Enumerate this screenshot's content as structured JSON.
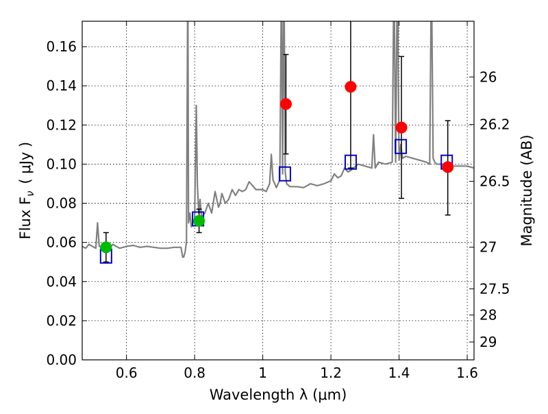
{
  "chart_data": {
    "type": "scatter",
    "xlabel": "Wavelength  λ (μm)",
    "ylabel": "Flux  F",
    "ylabel_sub": "ν",
    "ylabel_unit": "( μJy )",
    "y2label": "Magnitude (AB)",
    "xlim": [
      0.47,
      1.62
    ],
    "ylim": [
      0.0,
      0.173
    ],
    "grid": true,
    "xticks": [
      0.6,
      0.8,
      1.0,
      1.2,
      1.4,
      1.6
    ],
    "xtick_labels": [
      "0.6",
      "0.8",
      "1",
      "1.2",
      "1.4",
      "1.6"
    ],
    "yticks": [
      0.0,
      0.02,
      0.04,
      0.06,
      0.08,
      0.1,
      0.12,
      0.14,
      0.16
    ],
    "ytick_labels": [
      "0.00",
      "0.02",
      "0.04",
      "0.06",
      "0.08",
      "0.10",
      "0.12",
      "0.14",
      "0.16"
    ],
    "y2ticks": [
      {
        "mag": 26,
        "label": "26"
      },
      {
        "mag": 26.2,
        "label": "26.2"
      },
      {
        "mag": 26.5,
        "label": "26.5"
      },
      {
        "mag": 27,
        "label": "27"
      },
      {
        "mag": 27.5,
        "label": "27.5"
      },
      {
        "mag": 28,
        "label": "28"
      },
      {
        "mag": 29,
        "label": "29"
      }
    ],
    "series": [
      {
        "name": "model-photometry",
        "marker": "open-square",
        "color": "#0000cc",
        "x": [
          0.54,
          0.81,
          1.065,
          1.258,
          1.405,
          1.54
        ],
        "y": [
          0.053,
          0.072,
          0.095,
          0.101,
          0.109,
          0.101
        ]
      },
      {
        "name": "detections",
        "marker": "filled-circle",
        "color": "#00bb00",
        "x": [
          0.54,
          0.813
        ],
        "y": [
          0.0575,
          0.071
        ],
        "yerr": [
          0.0075,
          0.006
        ]
      },
      {
        "name": "upper-limits",
        "marker": "filled-circle",
        "color": "#ff0000",
        "x": [
          1.068,
          1.258,
          1.407,
          1.543
        ],
        "y": [
          0.1307,
          0.1395,
          0.1187,
          0.0985
        ],
        "yerr_low": [
          0.0255,
          0.0415,
          0.0362,
          0.0245
        ],
        "yerr_high": [
          0.0253,
          0.05,
          0.0363,
          0.0237
        ]
      }
    ],
    "spectrum": {
      "name": "model-spectrum",
      "color": "#808080",
      "x": [
        0.47,
        0.48,
        0.49,
        0.5,
        0.51,
        0.515,
        0.52,
        0.53,
        0.54,
        0.55,
        0.56,
        0.57,
        0.58,
        0.6,
        0.62,
        0.64,
        0.66,
        0.68,
        0.7,
        0.72,
        0.74,
        0.76,
        0.765,
        0.768,
        0.772,
        0.776,
        0.78,
        0.782,
        0.786,
        0.79,
        0.8,
        0.805,
        0.808,
        0.812,
        0.816,
        0.82,
        0.83,
        0.84,
        0.85,
        0.86,
        0.87,
        0.875,
        0.88,
        0.89,
        0.9,
        0.91,
        0.92,
        0.93,
        0.94,
        0.95,
        0.96,
        0.98,
        1.0,
        1.01,
        1.02,
        1.025,
        1.03,
        1.04,
        1.05,
        1.055,
        1.058,
        1.062,
        1.066,
        1.07,
        1.08,
        1.1,
        1.12,
        1.14,
        1.16,
        1.18,
        1.2,
        1.21,
        1.22,
        1.23,
        1.24,
        1.25,
        1.26,
        1.28,
        1.3,
        1.32,
        1.325,
        1.33,
        1.34,
        1.36,
        1.38,
        1.385,
        1.39,
        1.395,
        1.4,
        1.405,
        1.41,
        1.42,
        1.44,
        1.46,
        1.48,
        1.49,
        1.495,
        1.5,
        1.505,
        1.51,
        1.53,
        1.55,
        1.57,
        1.6,
        1.62
      ],
      "y": [
        0.058,
        0.057,
        0.059,
        0.058,
        0.057,
        0.07,
        0.058,
        0.057,
        0.058,
        0.057,
        0.059,
        0.058,
        0.057,
        0.058,
        0.0585,
        0.0575,
        0.058,
        0.0575,
        0.057,
        0.057,
        0.0575,
        0.0575,
        0.0525,
        0.0525,
        0.055,
        0.06,
        0.2,
        0.07,
        0.075,
        0.068,
        0.072,
        0.13,
        0.09,
        0.075,
        0.082,
        0.073,
        0.075,
        0.08,
        0.075,
        0.086,
        0.078,
        0.08,
        0.085,
        0.08,
        0.082,
        0.087,
        0.084,
        0.087,
        0.086,
        0.087,
        0.091,
        0.087,
        0.087,
        0.086,
        0.09,
        0.105,
        0.092,
        0.088,
        0.092,
        0.2,
        0.095,
        0.2,
        0.096,
        0.09,
        0.0885,
        0.0885,
        0.088,
        0.09,
        0.089,
        0.09,
        0.0915,
        0.095,
        0.093,
        0.094,
        0.098,
        0.096,
        0.097,
        0.1,
        0.099,
        0.098,
        0.115,
        0.098,
        0.101,
        0.1,
        0.101,
        0.2,
        0.101,
        0.2,
        0.102,
        0.11,
        0.103,
        0.104,
        0.103,
        0.102,
        0.101,
        0.1,
        0.2,
        0.103,
        0.101,
        0.1,
        0.1,
        0.099,
        0.099,
        0.099,
        0.098
      ]
    }
  }
}
